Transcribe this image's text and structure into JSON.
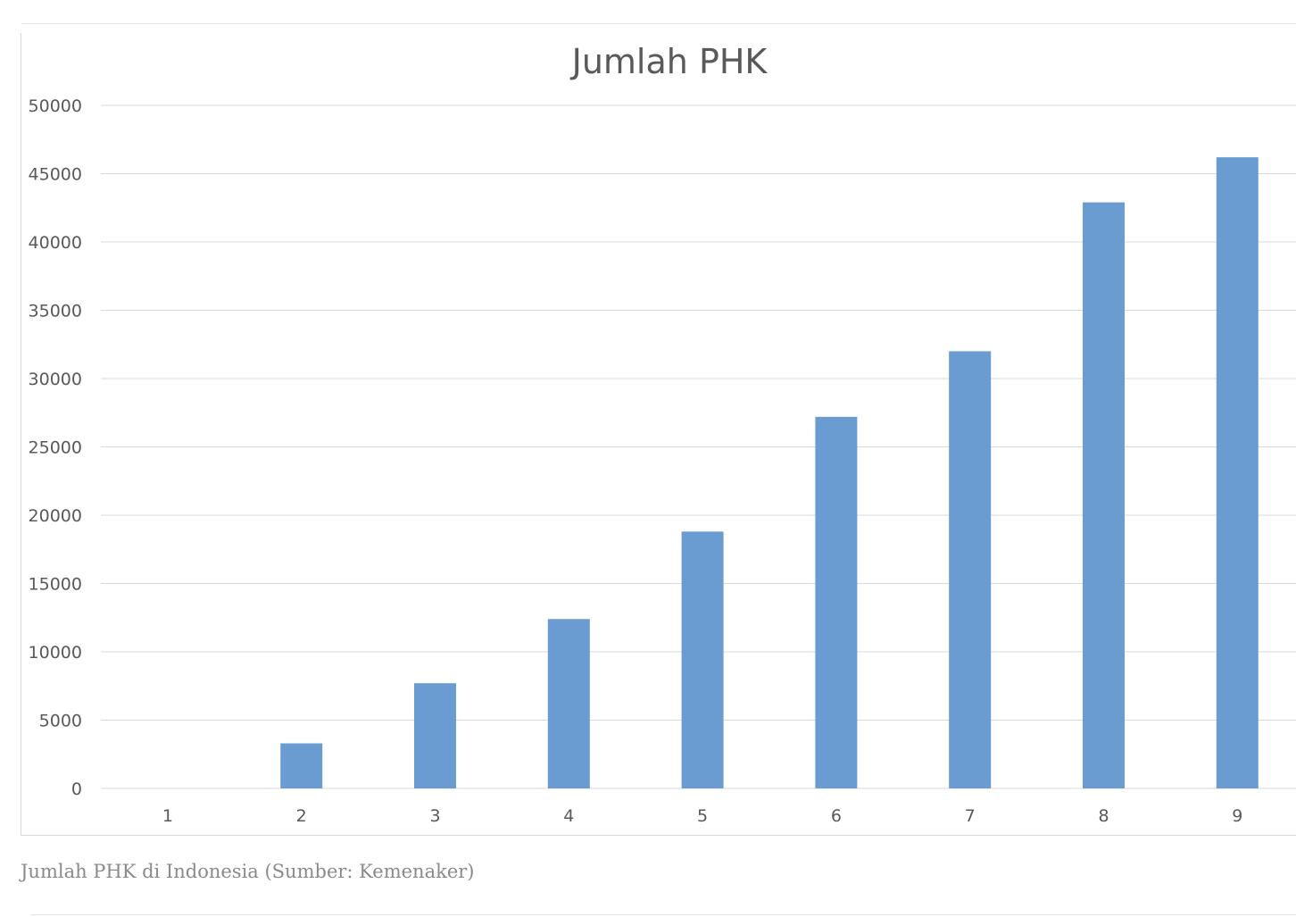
{
  "chart_data": {
    "type": "bar",
    "title": "Jumlah PHK",
    "xlabel": "",
    "ylabel": "",
    "categories": [
      "1",
      "2",
      "3",
      "4",
      "5",
      "6",
      "7",
      "8",
      "9"
    ],
    "values": [
      0,
      3300,
      7700,
      12400,
      18800,
      27200,
      32000,
      42900,
      46200
    ],
    "ylim": [
      0,
      50000
    ],
    "yticks": [
      0,
      5000,
      10000,
      15000,
      20000,
      25000,
      30000,
      35000,
      40000,
      45000,
      50000
    ],
    "grid": true,
    "legend": "none",
    "bar_color": "#6a9bd1",
    "grid_color": "#d9d9d9"
  },
  "caption": "Jumlah PHK di Indonesia (Sumber: Kemenaker)"
}
